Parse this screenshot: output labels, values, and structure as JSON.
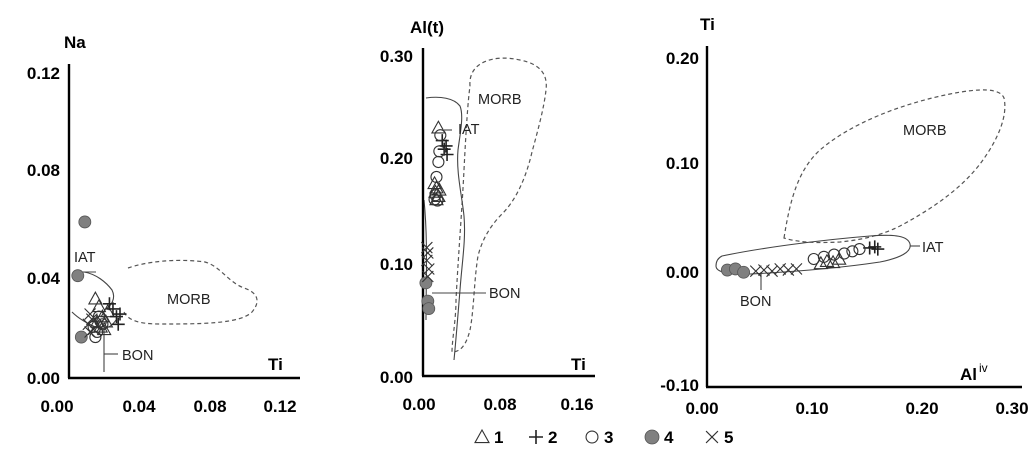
{
  "chart_data": [
    {
      "type": "scatter",
      "xlabel": "Ti",
      "ylabel": "Na",
      "xlim": [
        0,
        0.12
      ],
      "ylim": [
        0,
        0.12
      ],
      "xticks": [
        "0.00",
        "0.04",
        "0.08",
        "0.12"
      ],
      "yticks": [
        "0.00",
        "0.04",
        "0.08",
        "0.12"
      ],
      "field_labels": [
        "IAT",
        "MORB",
        "BON"
      ],
      "series": [
        {
          "key": "s1",
          "points": [
            [
              0.015,
              0.031
            ],
            [
              0.017,
              0.028
            ],
            [
              0.019,
              0.024
            ],
            [
              0.021,
              0.022
            ],
            [
              0.018,
              0.02
            ],
            [
              0.016,
              0.022
            ],
            [
              0.02,
              0.019
            ],
            [
              0.022,
              0.026
            ]
          ]
        },
        {
          "key": "s2",
          "points": [
            [
              0.025,
              0.027
            ],
            [
              0.027,
              0.024
            ],
            [
              0.029,
              0.025
            ],
            [
              0.023,
              0.029
            ],
            [
              0.028,
              0.021
            ]
          ]
        },
        {
          "key": "s3",
          "points": [
            [
              0.014,
              0.02
            ],
            [
              0.016,
              0.018
            ],
            [
              0.018,
              0.022
            ],
            [
              0.015,
              0.016
            ],
            [
              0.019,
              0.021
            ],
            [
              0.017,
              0.024
            ]
          ]
        },
        {
          "key": "s4",
          "points": [
            [
              0.009,
              0.061
            ],
            [
              0.005,
              0.04
            ],
            [
              0.007,
              0.016
            ]
          ]
        },
        {
          "key": "s5",
          "points": [
            [
              0.011,
              0.021
            ],
            [
              0.012,
              0.018
            ],
            [
              0.013,
              0.023
            ],
            [
              0.014,
              0.019
            ],
            [
              0.012,
              0.025
            ]
          ]
        }
      ]
    },
    {
      "type": "scatter",
      "xlabel": "Ti",
      "ylabel": "Al(t)",
      "xlim": [
        0,
        0.16
      ],
      "ylim": [
        0,
        0.3
      ],
      "xticks": [
        "0.00",
        "0.08",
        "0.16"
      ],
      "yticks": [
        "0.00",
        "0.10",
        "0.20",
        "0.30"
      ],
      "field_labels": [
        "IAT",
        "MORB",
        "BON"
      ],
      "series": [
        {
          "key": "s1",
          "points": [
            [
              0.016,
              0.232
            ],
            [
              0.014,
              0.176
            ],
            [
              0.013,
              0.172
            ],
            [
              0.016,
              0.168
            ],
            [
              0.012,
              0.18
            ],
            [
              0.014,
              0.165
            ],
            [
              0.017,
              0.174
            ]
          ]
        },
        {
          "key": "s2",
          "points": [
            [
              0.022,
              0.212
            ],
            [
              0.025,
              0.207
            ],
            [
              0.02,
              0.22
            ],
            [
              0.024,
              0.215
            ]
          ]
        },
        {
          "key": "s3",
          "points": [
            [
              0.018,
              0.225
            ],
            [
              0.017,
              0.21
            ],
            [
              0.016,
              0.2
            ],
            [
              0.014,
              0.186
            ],
            [
              0.013,
              0.169
            ],
            [
              0.015,
              0.164
            ],
            [
              0.012,
              0.165
            ]
          ]
        },
        {
          "key": "s4",
          "points": [
            [
              0.003,
              0.087
            ],
            [
              0.005,
              0.07
            ],
            [
              0.006,
              0.063
            ]
          ]
        },
        {
          "key": "s5",
          "points": [
            [
              0.004,
              0.12
            ],
            [
              0.005,
              0.115
            ],
            [
              0.004,
              0.108
            ],
            [
              0.006,
              0.1
            ],
            [
              0.005,
              0.093
            ]
          ]
        }
      ]
    },
    {
      "type": "scatter",
      "xlabel": "Al",
      "xlabel_sup": "iv",
      "ylabel": "Ti",
      "xlim": [
        0,
        0.3
      ],
      "ylim": [
        -0.1,
        0.2
      ],
      "xticks": [
        "0.00",
        "0.10",
        "0.20",
        "0.30"
      ],
      "yticks": [
        "-0.10",
        "0.00",
        "0.10",
        "0.20"
      ],
      "field_labels": [
        "MORB",
        "IAT",
        "BON"
      ],
      "series": [
        {
          "key": "s1",
          "points": [
            [
              0.112,
              0.012
            ],
            [
              0.118,
              0.014
            ],
            [
              0.124,
              0.013
            ],
            [
              0.13,
              0.016
            ]
          ]
        },
        {
          "key": "s2",
          "points": [
            [
              0.16,
              0.026
            ],
            [
              0.165,
              0.027
            ],
            [
              0.168,
              0.025
            ]
          ]
        },
        {
          "key": "s3",
          "points": [
            [
              0.105,
              0.016
            ],
            [
              0.115,
              0.018
            ],
            [
              0.125,
              0.02
            ],
            [
              0.135,
              0.021
            ],
            [
              0.143,
              0.023
            ],
            [
              0.15,
              0.025
            ]
          ]
        },
        {
          "key": "s4",
          "points": [
            [
              0.02,
              0.006
            ],
            [
              0.028,
              0.007
            ],
            [
              0.036,
              0.004
            ]
          ]
        },
        {
          "key": "s5",
          "points": [
            [
              0.048,
              0.005
            ],
            [
              0.056,
              0.006
            ],
            [
              0.064,
              0.005
            ],
            [
              0.072,
              0.007
            ],
            [
              0.08,
              0.006
            ],
            [
              0.088,
              0.007
            ]
          ]
        }
      ]
    }
  ],
  "legend": [
    {
      "symbol": "triangle",
      "label": "1"
    },
    {
      "symbol": "plus",
      "label": "2"
    },
    {
      "symbol": "circle",
      "label": "3"
    },
    {
      "symbol": "dot",
      "label": "4"
    },
    {
      "symbol": "cross",
      "label": "5"
    }
  ]
}
